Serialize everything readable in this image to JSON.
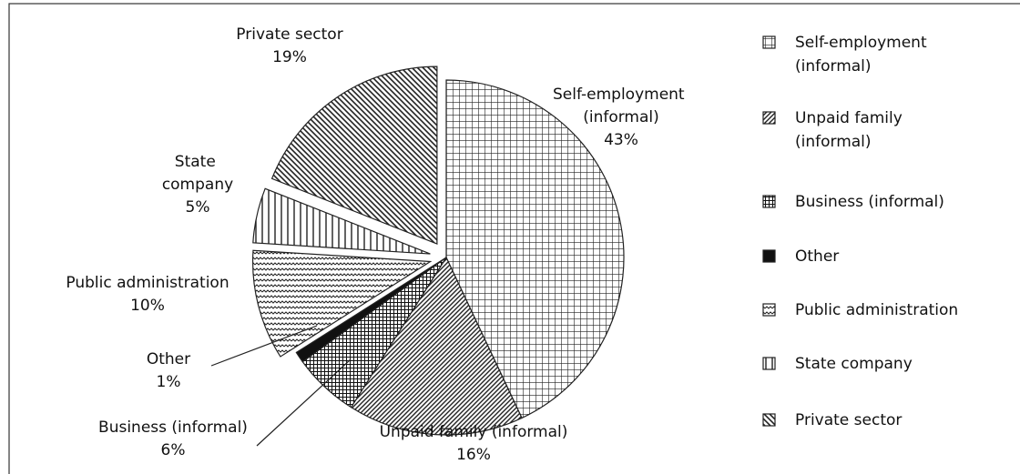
{
  "chart_data": {
    "type": "pie",
    "categories": [
      "Self-employment (informal)",
      "Unpaid family (informal)",
      "Business (informal)",
      "Other",
      "Public administration",
      "State company",
      "Private sector"
    ],
    "values": [
      43,
      16,
      6,
      1,
      10,
      5,
      19
    ],
    "value_labels": [
      "43%",
      "16%",
      "6%",
      "1%",
      "10%",
      "5%",
      "19%"
    ],
    "exploded": [
      false,
      false,
      false,
      false,
      true,
      true,
      true
    ],
    "legend": "right"
  }
}
